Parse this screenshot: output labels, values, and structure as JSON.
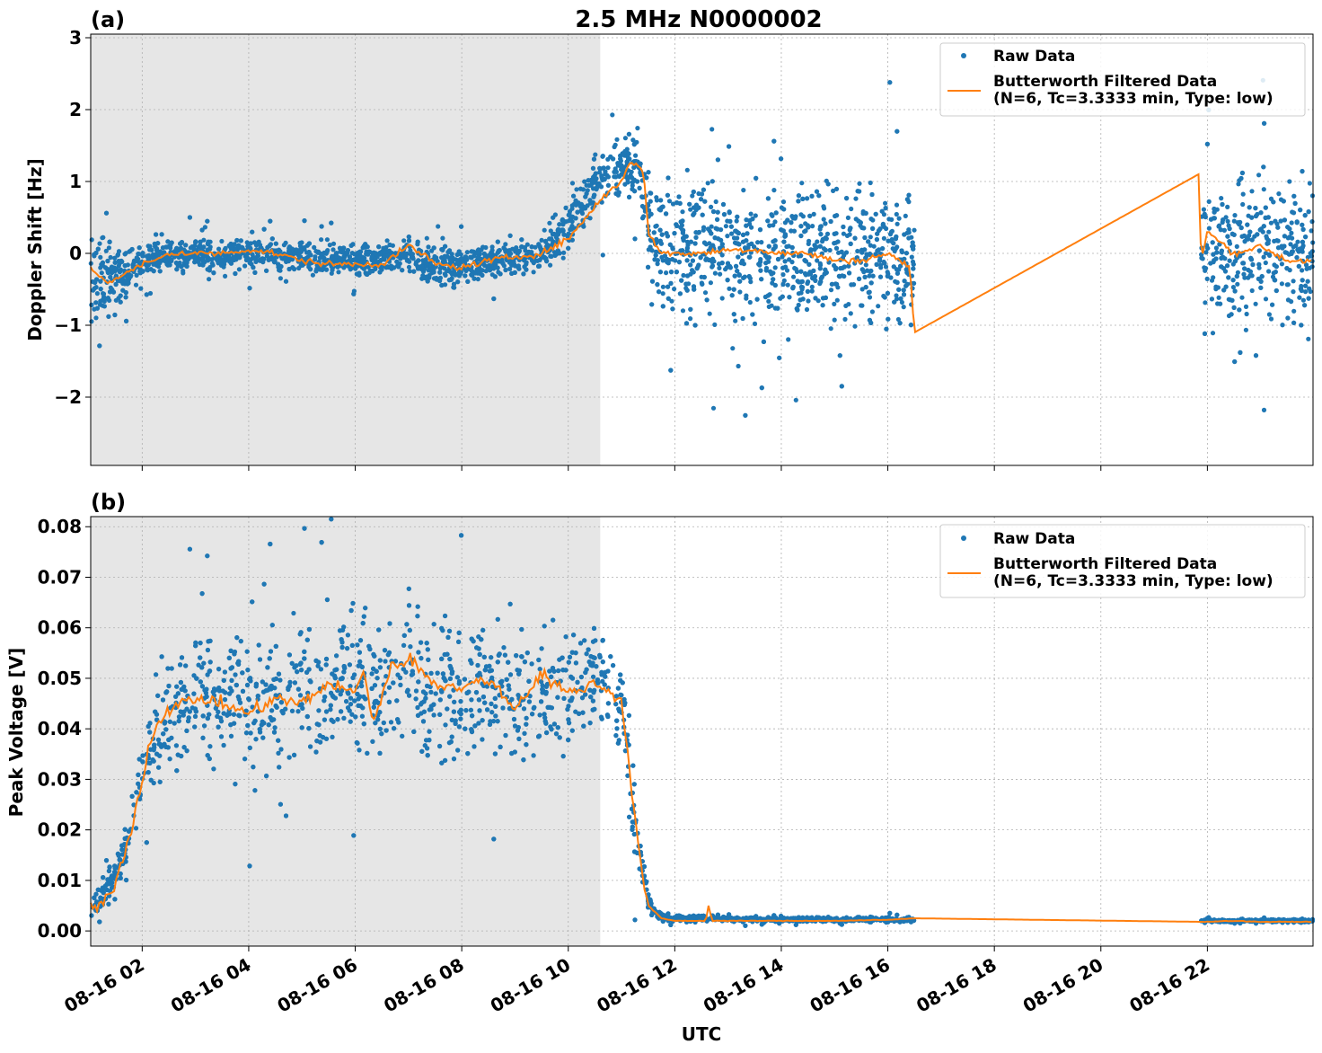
{
  "title": "2.5 MHz N0000002",
  "xlabel": "UTC",
  "x_tick_labels": [
    "08-16 02",
    "08-16 04",
    "08-16 06",
    "08-16 08",
    "08-16 10",
    "08-16 12",
    "08-16 14",
    "08-16 16",
    "08-16 18",
    "08-16 20",
    "08-16 22"
  ],
  "colors": {
    "raw": "#1f77b4",
    "filtered": "#ff7f0e",
    "shade": "#e6e6e6",
    "grid": "#b0b0b0"
  },
  "chart_data": [
    {
      "type": "scatter",
      "panel_label": "(a)",
      "title": "2.5 MHz N0000002",
      "xlabel": "",
      "ylabel": "Doppler Shift [Hz]",
      "xlim": [
        "08-16 01:02",
        "08-16 23:59"
      ],
      "ylim": [
        -2.95,
        3.05
      ],
      "y_ticks": [
        -2,
        -1,
        0,
        1,
        2,
        3
      ],
      "y_tick_labels": [
        "−2",
        "−1",
        "0",
        "1",
        "2",
        "3"
      ],
      "grid": true,
      "legend_position": "top-right",
      "shaded_region": [
        "08-16 01:02",
        "08-16 10:36"
      ],
      "data_gap": [
        "08-16 16:30",
        "08-16 21:53"
      ],
      "series": [
        {
          "name": "Raw Data",
          "style": "points",
          "envelope_x": [
            "08-16 01:02",
            "08-16 01:30",
            "08-16 02:00",
            "08-16 02:30",
            "08-16 03:00",
            "08-16 03:30",
            "08-16 04:00",
            "08-16 05:00",
            "08-16 06:00",
            "08-16 07:00",
            "08-16 07:30",
            "08-16 08:00",
            "08-16 09:00",
            "08-16 09:30",
            "08-16 10:00",
            "08-16 10:30",
            "08-16 11:00",
            "08-16 11:20",
            "08-16 11:30",
            "08-16 12:00",
            "08-16 13:00",
            "08-16 14:00",
            "08-16 15:00",
            "08-16 16:00",
            "08-16 16:30",
            "08-16 21:53",
            "08-16 22:30",
            "08-16 23:00",
            "08-16 23:30",
            "08-16 23:59"
          ],
          "envelope_min": [
            -1.2,
            -0.9,
            -0.5,
            -0.3,
            -0.3,
            -0.35,
            -0.3,
            -0.35,
            -0.4,
            -0.35,
            -0.6,
            -0.5,
            -0.4,
            -0.35,
            -0.1,
            0.3,
            0.6,
            0.6,
            -1.0,
            -1.3,
            -1.4,
            -1.5,
            -1.4,
            -1.45,
            -1.5,
            -1.5,
            -1.5,
            -1.45,
            -1.5,
            -1.5
          ],
          "envelope_max": [
            0.6,
            0.15,
            0.2,
            0.3,
            0.3,
            0.28,
            0.3,
            0.25,
            0.2,
            0.3,
            0.25,
            0.15,
            0.3,
            0.4,
            0.9,
            1.5,
            1.8,
            1.9,
            1.5,
            1.4,
            1.5,
            1.45,
            1.45,
            1.4,
            1.35,
            1.5,
            1.6,
            1.5,
            1.5,
            1.5
          ]
        },
        {
          "name": "Butterworth Filtered Data\n(N=6, Tc=3.3333 min, Type: low)",
          "style": "line",
          "x": [
            "08-16 01:02",
            "08-16 01:20",
            "08-16 01:40",
            "08-16 02:00",
            "08-16 02:15",
            "08-16 02:30",
            "08-16 03:00",
            "08-16 03:30",
            "08-16 04:00",
            "08-16 04:30",
            "08-16 05:00",
            "08-16 05:30",
            "08-16 06:00",
            "08-16 06:30",
            "08-16 07:00",
            "08-16 07:15",
            "08-16 07:30",
            "08-16 08:00",
            "08-16 08:30",
            "08-16 09:00",
            "08-16 09:30",
            "08-16 10:00",
            "08-16 10:20",
            "08-16 10:40",
            "08-16 11:00",
            "08-16 11:10",
            "08-16 11:20",
            "08-16 11:25",
            "08-16 11:30",
            "08-16 11:45",
            "08-16 12:00",
            "08-16 12:30",
            "08-16 13:00",
            "08-16 13:30",
            "08-16 14:00",
            "08-16 14:30",
            "08-16 15:00",
            "08-16 15:30",
            "08-16 16:00",
            "08-16 16:25",
            "08-16 16:30",
            "08-16 21:50",
            "08-16 21:53",
            "08-16 22:00",
            "08-16 22:30",
            "08-16 23:00",
            "08-16 23:30",
            "08-16 23:59"
          ],
          "y": [
            -0.2,
            -0.4,
            -0.3,
            -0.15,
            -0.1,
            0.0,
            0.0,
            0.0,
            0.05,
            0.0,
            -0.1,
            -0.15,
            -0.15,
            -0.15,
            0.1,
            0.0,
            -0.15,
            -0.2,
            -0.1,
            -0.05,
            0.0,
            0.2,
            0.5,
            0.8,
            1.0,
            1.3,
            1.2,
            1.1,
            0.3,
            0.0,
            0.0,
            0.0,
            0.05,
            0.05,
            0.0,
            0.0,
            -0.1,
            -0.1,
            0.0,
            -0.2,
            -1.1,
            1.1,
            -0.1,
            0.3,
            0.0,
            0.1,
            -0.1,
            -0.1
          ]
        }
      ]
    },
    {
      "type": "scatter",
      "panel_label": "(b)",
      "xlabel": "UTC",
      "ylabel": "Peak Voltage [V]",
      "xlim": [
        "08-16 01:02",
        "08-16 23:59"
      ],
      "ylim": [
        -0.003,
        0.082
      ],
      "y_ticks": [
        0.0,
        0.01,
        0.02,
        0.03,
        0.04,
        0.05,
        0.06,
        0.07,
        0.08
      ],
      "y_tick_labels": [
        "0.00",
        "0.01",
        "0.02",
        "0.03",
        "0.04",
        "0.05",
        "0.06",
        "0.07",
        "0.08"
      ],
      "grid": true,
      "legend_position": "top-right",
      "shaded_region": [
        "08-16 01:02",
        "08-16 10:36"
      ],
      "data_gap": [
        "08-16 16:30",
        "08-16 21:53"
      ],
      "series": [
        {
          "name": "Raw Data",
          "style": "points",
          "envelope_x": [
            "08-16 01:02",
            "08-16 01:30",
            "08-16 01:45",
            "08-16 02:00",
            "08-16 02:30",
            "08-16 03:00",
            "08-16 04:00",
            "08-16 05:00",
            "08-16 06:00",
            "08-16 06:30",
            "08-16 07:00",
            "08-16 07:30",
            "08-16 08:00",
            "08-16 09:00",
            "08-16 10:00",
            "08-16 10:30",
            "08-16 11:00",
            "08-16 11:15",
            "08-16 11:30",
            "08-16 11:45",
            "08-16 12:00",
            "08-16 14:00",
            "08-16 16:00",
            "08-16 16:30",
            "08-16 21:53",
            "08-16 23:59"
          ],
          "envelope_min": [
            0.001,
            0.006,
            0.014,
            0.02,
            0.026,
            0.03,
            0.025,
            0.027,
            0.03,
            0.027,
            0.032,
            0.025,
            0.03,
            0.028,
            0.032,
            0.035,
            0.03,
            0.01,
            0.003,
            0.0015,
            0.0015,
            0.0015,
            0.0015,
            0.0015,
            0.0015,
            0.0015
          ],
          "envelope_max": [
            0.008,
            0.015,
            0.025,
            0.04,
            0.06,
            0.065,
            0.065,
            0.066,
            0.07,
            0.07,
            0.072,
            0.07,
            0.066,
            0.067,
            0.066,
            0.064,
            0.062,
            0.035,
            0.008,
            0.004,
            0.0035,
            0.003,
            0.003,
            0.003,
            0.0025,
            0.0025
          ]
        },
        {
          "name": "Butterworth Filtered Data\n(N=6, Tc=3.3333 min, Type: low)",
          "style": "line",
          "x": [
            "08-16 01:02",
            "08-16 01:20",
            "08-16 01:30",
            "08-16 01:40",
            "08-16 01:50",
            "08-16 02:00",
            "08-16 02:10",
            "08-16 02:20",
            "08-16 02:30",
            "08-16 03:00",
            "08-16 03:30",
            "08-16 04:00",
            "08-16 04:30",
            "08-16 05:00",
            "08-16 05:30",
            "08-16 06:00",
            "08-16 06:10",
            "08-16 06:20",
            "08-16 06:40",
            "08-16 07:00",
            "08-16 07:30",
            "08-16 08:00",
            "08-16 08:30",
            "08-16 09:00",
            "08-16 09:30",
            "08-16 10:00",
            "08-16 10:30",
            "08-16 10:50",
            "08-16 11:00",
            "08-16 11:10",
            "08-16 11:20",
            "08-16 11:30",
            "08-16 11:45",
            "08-16 12:00",
            "08-16 12:35",
            "08-16 12:38",
            "08-16 12:42",
            "08-16 13:00",
            "08-16 14:00",
            "08-16 15:00",
            "08-16 16:00",
            "08-16 16:30",
            "08-16 21:53",
            "08-16 22:30",
            "08-16 23:00",
            "08-16 23:59"
          ],
          "y": [
            0.004,
            0.006,
            0.01,
            0.015,
            0.022,
            0.03,
            0.038,
            0.042,
            0.044,
            0.046,
            0.045,
            0.043,
            0.046,
            0.045,
            0.049,
            0.047,
            0.052,
            0.041,
            0.052,
            0.054,
            0.049,
            0.048,
            0.05,
            0.044,
            0.051,
            0.047,
            0.049,
            0.047,
            0.046,
            0.03,
            0.015,
            0.005,
            0.0025,
            0.002,
            0.002,
            0.005,
            0.002,
            0.002,
            0.002,
            0.002,
            0.0022,
            0.0025,
            0.0018,
            0.002,
            0.0018,
            0.0018
          ]
        }
      ]
    }
  ]
}
